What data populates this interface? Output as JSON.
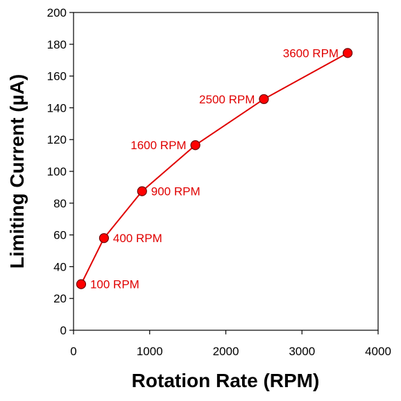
{
  "chart_data": {
    "type": "line",
    "title": "",
    "xlabel": "Rotation Rate (RPM)",
    "ylabel": "Limiting Current (µA)",
    "xlim": [
      0,
      4000
    ],
    "ylim": [
      0,
      200
    ],
    "xticks": [
      0,
      1000,
      2000,
      3000,
      4000
    ],
    "yticks": [
      0,
      20,
      40,
      60,
      80,
      100,
      120,
      140,
      160,
      180,
      200
    ],
    "grid": false,
    "legend": "none",
    "series": [
      {
        "color": "#e00000",
        "x": [
          100,
          400,
          900,
          1600,
          2500,
          3600
        ],
        "y": [
          29,
          58,
          87.5,
          116.5,
          145.5,
          174.5
        ],
        "labels": [
          "100 RPM",
          "400 RPM",
          "900 RPM",
          "1600 RPM",
          "2500 RPM",
          "3600 RPM"
        ],
        "label_side": [
          "right",
          "right",
          "right",
          "left",
          "left",
          "left"
        ]
      }
    ]
  }
}
